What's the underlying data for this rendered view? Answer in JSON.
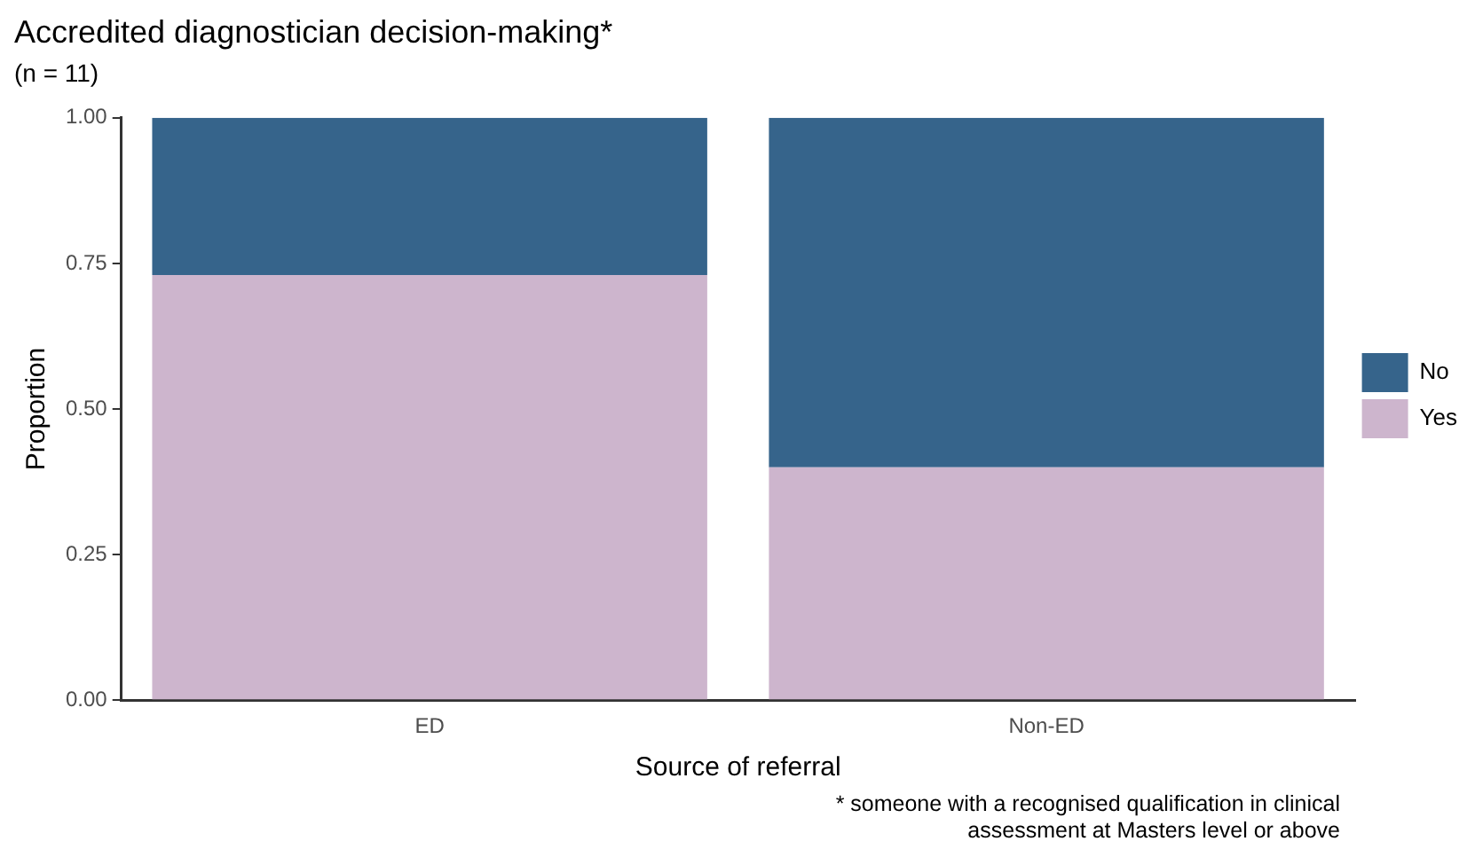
{
  "chart_data": {
    "type": "bar",
    "title": "Accredited diagnostician decision-making*",
    "subtitle": "(n = 11)",
    "xlabel": "Source of referral",
    "ylabel": "Proportion",
    "categories": [
      "ED",
      "Non-ED"
    ],
    "stacked": true,
    "series": [
      {
        "name": "Yes",
        "color": "#cdb5cd",
        "values": [
          0.73,
          0.4
        ]
      },
      {
        "name": "No",
        "color": "#36648b",
        "values": [
          0.27,
          0.6
        ]
      }
    ],
    "ylim": [
      0,
      1
    ],
    "yticks": [
      {
        "value": 0,
        "label": "0.00"
      },
      {
        "value": 0.25,
        "label": "0.25"
      },
      {
        "value": 0.5,
        "label": "0.50"
      },
      {
        "value": 0.75,
        "label": "0.75"
      },
      {
        "value": 1,
        "label": "1.00"
      }
    ],
    "grid": false,
    "legend": "right",
    "annotations": [
      "* someone with a recognised qualification in clinical assessment at Masters level or above"
    ]
  }
}
